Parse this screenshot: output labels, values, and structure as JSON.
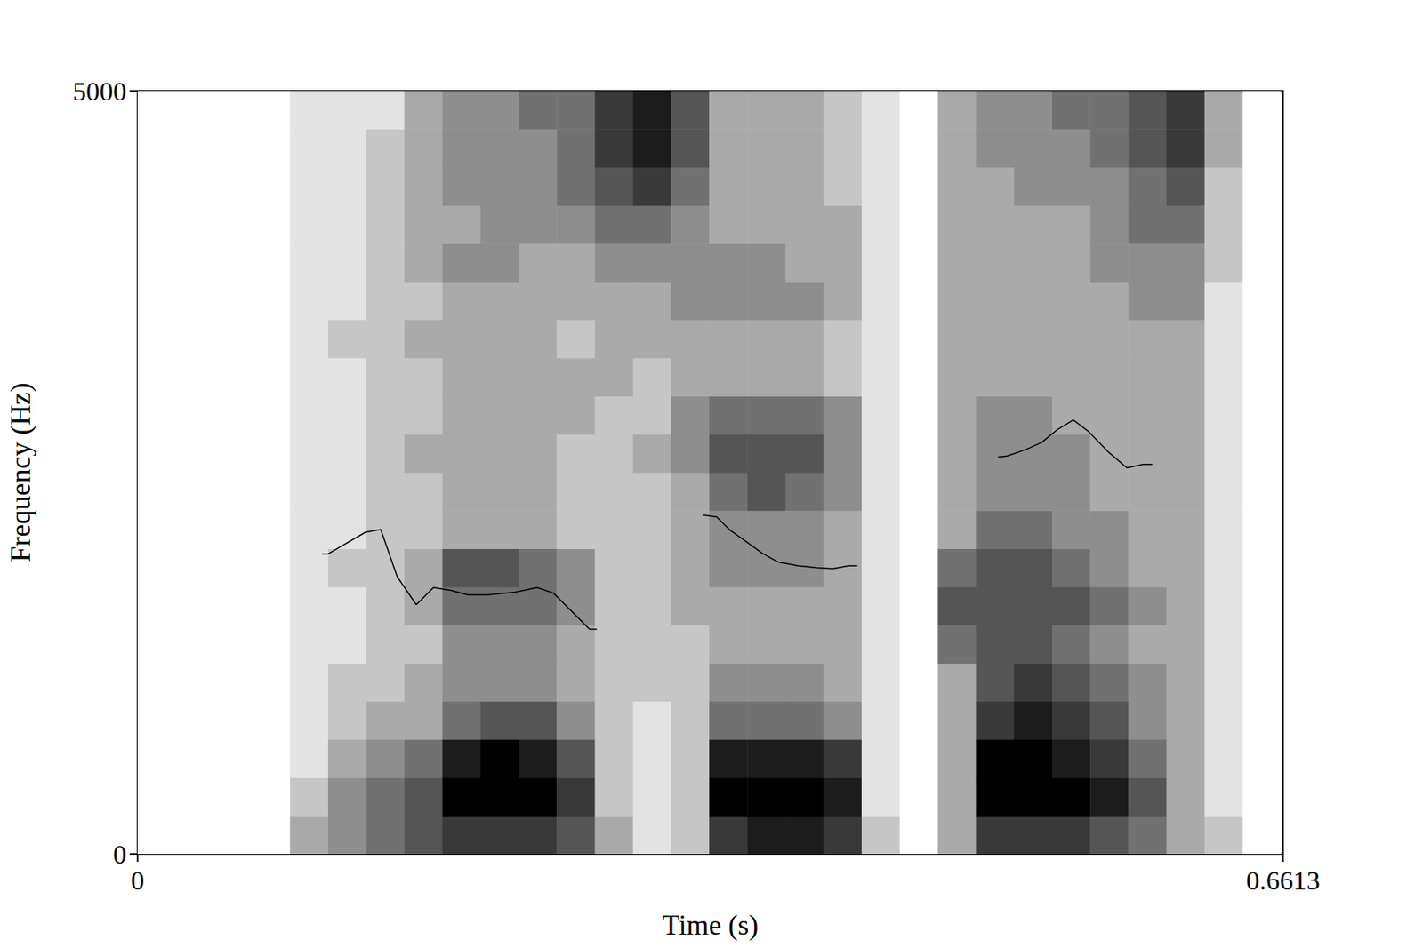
{
  "chart_data": {
    "type": "spectrogram",
    "xlabel": "Time (s)",
    "ylabel": "Frequency (Hz)",
    "xlim": [
      0,
      0.6613
    ],
    "xticks": [
      0,
      0.6613
    ],
    "ylim": [
      0,
      5000
    ],
    "yticks": [
      0,
      5000
    ],
    "grid": false,
    "color": "#000000",
    "spectrogram": {
      "x_bins": [
        0,
        0.022,
        0.044,
        0.066,
        0.088,
        0.11,
        0.132,
        0.154,
        0.176,
        0.198,
        0.22,
        0.242,
        0.264,
        0.286,
        0.308,
        0.33,
        0.352,
        0.374,
        0.396,
        0.418,
        0.44,
        0.462,
        0.484,
        0.506,
        0.528,
        0.55,
        0.572,
        0.594,
        0.616,
        0.638,
        0.66
      ],
      "y_bins": [
        0,
        250,
        500,
        750,
        1000,
        1250,
        1500,
        1750,
        2000,
        2250,
        2500,
        2750,
        3000,
        3250,
        3500,
        3750,
        4000,
        4250,
        4500,
        4750,
        5000
      ],
      "cells": [
        [
          0,
          0,
          0,
          0,
          0,
          0,
          0,
          0,
          0,
          0,
          0,
          0,
          0,
          0,
          0,
          0,
          0,
          0,
          0,
          0
        ],
        [
          0,
          0,
          0,
          0,
          0,
          0,
          0,
          0,
          0,
          0,
          0,
          0,
          0,
          0,
          0,
          0,
          0,
          0,
          0,
          0
        ],
        [
          0,
          0,
          0,
          0,
          0,
          0,
          0,
          0,
          0,
          0,
          0,
          0,
          0,
          0,
          0,
          0,
          0,
          0,
          0,
          0
        ],
        [
          0,
          0,
          0,
          0,
          0,
          0,
          0,
          0,
          0,
          0,
          0,
          0,
          0,
          0,
          0,
          0,
          0,
          0,
          0,
          0
        ],
        [
          3,
          2,
          1,
          1,
          1,
          1,
          1,
          1,
          1,
          1,
          1,
          1,
          1,
          1,
          1,
          1,
          1,
          1,
          1,
          1
        ],
        [
          4,
          4,
          3,
          2,
          2,
          1,
          1,
          2,
          1,
          1,
          1,
          1,
          1,
          2,
          1,
          1,
          1,
          1,
          1,
          1
        ],
        [
          5,
          5,
          4,
          3,
          2,
          2,
          2,
          2,
          2,
          2,
          2,
          2,
          2,
          2,
          2,
          2,
          2,
          2,
          2,
          1
        ],
        [
          6,
          6,
          5,
          3,
          3,
          2,
          3,
          3,
          2,
          2,
          3,
          2,
          2,
          3,
          2,
          3,
          3,
          3,
          3,
          3
        ],
        [
          7,
          9,
          8,
          5,
          4,
          4,
          5,
          6,
          3,
          3,
          3,
          3,
          3,
          3,
          3,
          4,
          3,
          4,
          4,
          4
        ],
        [
          7,
          9,
          9,
          6,
          4,
          4,
          5,
          6,
          3,
          3,
          3,
          3,
          3,
          3,
          3,
          4,
          4,
          4,
          4,
          4
        ],
        [
          7,
          9,
          8,
          6,
          4,
          4,
          5,
          5,
          3,
          3,
          3,
          3,
          3,
          3,
          3,
          3,
          4,
          4,
          4,
          5
        ],
        [
          6,
          7,
          6,
          4,
          3,
          3,
          4,
          4,
          2,
          2,
          2,
          3,
          3,
          2,
          3,
          3,
          4,
          5,
          5,
          5
        ],
        [
          3,
          2,
          2,
          2,
          2,
          2,
          2,
          2,
          2,
          2,
          2,
          2,
          3,
          3,
          3,
          4,
          5,
          6,
          7,
          7
        ],
        [
          1,
          1,
          1,
          1,
          2,
          2,
          2,
          2,
          2,
          2,
          3,
          2,
          2,
          3,
          3,
          4,
          5,
          7,
          8,
          8
        ],
        [
          2,
          2,
          2,
          2,
          2,
          2,
          3,
          3,
          3,
          3,
          4,
          4,
          3,
          3,
          4,
          4,
          4,
          5,
          6,
          6
        ],
        [
          7,
          9,
          8,
          5,
          4,
          3,
          3,
          4,
          4,
          5,
          6,
          5,
          3,
          3,
          4,
          4,
          3,
          3,
          3,
          3
        ],
        [
          8,
          9,
          8,
          5,
          4,
          3,
          3,
          4,
          4,
          6,
          6,
          5,
          3,
          3,
          4,
          4,
          3,
          3,
          3,
          3
        ],
        [
          8,
          9,
          8,
          5,
          4,
          3,
          3,
          4,
          4,
          5,
          6,
          5,
          3,
          3,
          4,
          3,
          3,
          3,
          3,
          3
        ],
        [
          7,
          8,
          7,
          4,
          3,
          3,
          3,
          3,
          3,
          4,
          4,
          4,
          2,
          2,
          3,
          3,
          3,
          2,
          2,
          2
        ],
        [
          2,
          1,
          1,
          1,
          1,
          1,
          1,
          1,
          1,
          1,
          1,
          1,
          1,
          1,
          1,
          1,
          1,
          1,
          1,
          1
        ],
        [
          0,
          0,
          0,
          0,
          0,
          0,
          0,
          0,
          0,
          0,
          0,
          0,
          0,
          0,
          0,
          0,
          0,
          0,
          0,
          0
        ],
        [
          3,
          3,
          3,
          3,
          3,
          5,
          6,
          5,
          3,
          3,
          3,
          3,
          3,
          3,
          3,
          3,
          3,
          3,
          3,
          3
        ],
        [
          7,
          9,
          9,
          7,
          6,
          6,
          6,
          6,
          5,
          4,
          4,
          4,
          3,
          3,
          3,
          3,
          3,
          3,
          4,
          4
        ],
        [
          7,
          9,
          9,
          8,
          7,
          6,
          6,
          6,
          5,
          4,
          4,
          4,
          3,
          3,
          3,
          3,
          3,
          4,
          4,
          4
        ],
        [
          7,
          9,
          8,
          7,
          6,
          5,
          6,
          5,
          4,
          4,
          4,
          3,
          3,
          3,
          3,
          3,
          3,
          4,
          4,
          5
        ],
        [
          6,
          8,
          7,
          6,
          5,
          4,
          5,
          4,
          4,
          3,
          3,
          3,
          3,
          3,
          3,
          4,
          4,
          4,
          5,
          5
        ],
        [
          5,
          6,
          5,
          4,
          4,
          3,
          4,
          3,
          3,
          3,
          3,
          3,
          3,
          3,
          4,
          4,
          5,
          5,
          6,
          6
        ],
        [
          3,
          3,
          3,
          3,
          3,
          3,
          3,
          3,
          3,
          3,
          3,
          3,
          3,
          3,
          4,
          4,
          5,
          6,
          7,
          7
        ],
        [
          2,
          1,
          1,
          1,
          1,
          1,
          1,
          1,
          1,
          1,
          1,
          1,
          1,
          1,
          1,
          2,
          2,
          2,
          3,
          3
        ],
        [
          0,
          0,
          0,
          0,
          0,
          0,
          0,
          0,
          0,
          0,
          0,
          0,
          0,
          0,
          0,
          0,
          0,
          0,
          0,
          0
        ]
      ]
    },
    "pitch": [
      {
        "x": [
          0.1064,
          0.11,
          0.1315,
          0.1404,
          0.1499,
          0.1609,
          0.1708,
          0.1808,
          0.1907,
          0.2023,
          0.218,
          0.2306,
          0.24,
          0.2536,
          0.2609,
          0.2651
        ],
        "values": [
          1966,
          1966,
          2108,
          2126,
          1817,
          1633,
          1746,
          1728,
          1698,
          1698,
          1716,
          1746,
          1710,
          1556,
          1473,
          1473
        ]
      },
      {
        "x": [
          0.3265,
          0.3343,
          0.3422,
          0.3511,
          0.3605,
          0.3699,
          0.3815,
          0.3919,
          0.4014,
          0.4103,
          0.4155
        ],
        "values": [
          2221,
          2209,
          2120,
          2049,
          1971,
          1912,
          1888,
          1876,
          1870,
          1888,
          1888
        ]
      },
      {
        "x": [
          0.4967,
          0.502,
          0.5125,
          0.5219,
          0.5308,
          0.5402,
          0.5491,
          0.5607,
          0.5712,
          0.5806,
          0.5858
        ],
        "values": [
          2601,
          2607,
          2648,
          2696,
          2779,
          2844,
          2767,
          2631,
          2530,
          2553,
          2553
        ]
      }
    ]
  }
}
